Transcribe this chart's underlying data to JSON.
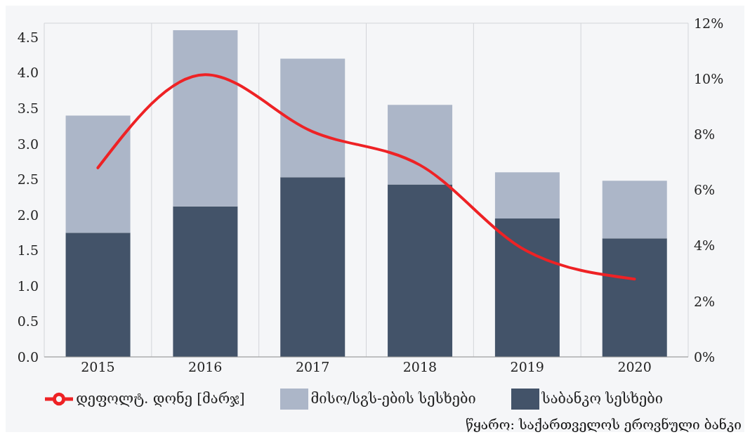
{
  "chart_data": {
    "type": "bar",
    "stacked": true,
    "categories": [
      "2015",
      "2016",
      "2017",
      "2018",
      "2019",
      "2020"
    ],
    "series": [
      {
        "name": "საბანკო სესხები",
        "color": "#435369",
        "values": [
          1.75,
          2.12,
          2.53,
          2.43,
          1.95,
          1.67
        ]
      },
      {
        "name": "მისო/სგს-ების სესხები",
        "color": "#acb6c8",
        "values": [
          1.65,
          2.48,
          1.67,
          1.12,
          0.65,
          0.81
        ]
      },
      {
        "name": "დეფოლტ. დონე [მარჯ]",
        "type": "line",
        "axis": "y2",
        "color": "#ee2225",
        "values": [
          6.8,
          10.15,
          8.1,
          6.9,
          3.8,
          2.8
        ]
      }
    ],
    "ylim": [
      0,
      4.7
    ],
    "yticks": [
      {
        "value": 0,
        "label": "0.0"
      },
      0.5,
      {
        "value": 1,
        "label": "1.0"
      },
      1.5,
      {
        "value": 2,
        "label": "2.0"
      },
      2.5,
      {
        "value": 3,
        "label": "3.0"
      },
      3.5,
      {
        "value": 4,
        "label": "4.0"
      },
      4.5
    ],
    "y2lim": [
      0,
      12
    ],
    "y2ticks": [
      {
        "value": 0,
        "label": "0%"
      },
      {
        "value": 2,
        "label": "2%"
      },
      {
        "value": 4,
        "label": "4%"
      },
      {
        "value": 6,
        "label": "6%"
      },
      {
        "value": 8,
        "label": "8%"
      },
      {
        "value": 10,
        "label": "10%"
      },
      {
        "value": 12,
        "label": "12%"
      }
    ],
    "grid": true,
    "legend": "bottom",
    "marker": "none",
    "annotations": [
      "წყარო: საქართველოს ეროვნული ბანკი"
    ]
  }
}
